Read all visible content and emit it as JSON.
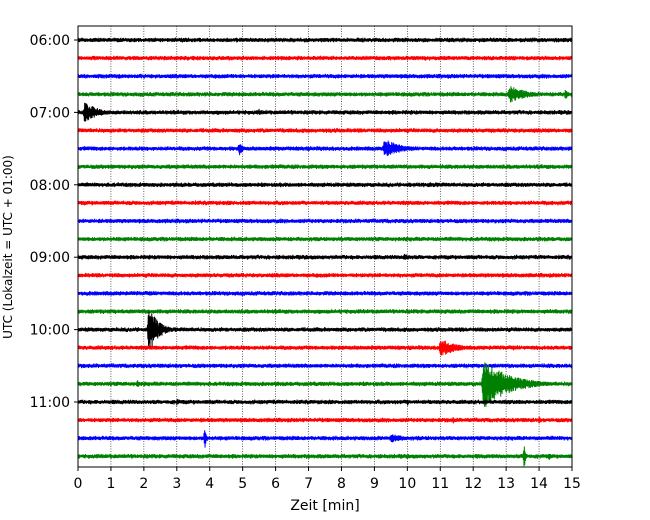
{
  "chart_data": {
    "type": "line",
    "title": "",
    "xlabel": "Zeit  [min]",
    "ylabel": "UTC (Lokalzeit = UTC + 01:00)",
    "xlim": [
      0,
      15
    ],
    "x_ticks": [
      0,
      1,
      2,
      3,
      4,
      5,
      6,
      7,
      8,
      9,
      10,
      11,
      12,
      13,
      14,
      15
    ],
    "y_ticks": [
      "06:00",
      "07:00",
      "08:00",
      "09:00",
      "10:00",
      "11:00"
    ],
    "vertical_grid": true,
    "colors": [
      "#000000",
      "#ff0000",
      "#0000ff",
      "#008000"
    ],
    "traces": [
      {
        "start": "06:00",
        "color": "#000000",
        "events": []
      },
      {
        "start": "06:15",
        "color": "#ff0000",
        "events": []
      },
      {
        "start": "06:30",
        "color": "#0000ff",
        "events": []
      },
      {
        "start": "06:45",
        "color": "#008000",
        "events": [
          {
            "t": 13.1,
            "amp": 9,
            "dur": 1.6
          },
          {
            "t": 14.8,
            "amp": 6,
            "dur": 0.3
          }
        ]
      },
      {
        "start": "07:00",
        "color": "#000000",
        "events": [
          {
            "t": 0.2,
            "amp": 11,
            "dur": 1.2
          },
          {
            "t": 5.5,
            "amp": 4,
            "dur": 0.3
          }
        ]
      },
      {
        "start": "07:15",
        "color": "#ff0000",
        "events": []
      },
      {
        "start": "07:30",
        "color": "#0000ff",
        "events": [
          {
            "t": 4.9,
            "amp": 8,
            "dur": 0.3
          },
          {
            "t": 9.3,
            "amp": 10,
            "dur": 1.5
          }
        ]
      },
      {
        "start": "07:45",
        "color": "#008000",
        "events": []
      },
      {
        "start": "08:00",
        "color": "#000000",
        "events": []
      },
      {
        "start": "08:15",
        "color": "#ff0000",
        "events": []
      },
      {
        "start": "08:30",
        "color": "#0000ff",
        "events": []
      },
      {
        "start": "08:45",
        "color": "#008000",
        "events": []
      },
      {
        "start": "09:00",
        "color": "#000000",
        "events": [
          {
            "t": 9.9,
            "amp": 4,
            "dur": 0.8
          }
        ]
      },
      {
        "start": "09:15",
        "color": "#ff0000",
        "events": []
      },
      {
        "start": "09:30",
        "color": "#0000ff",
        "events": []
      },
      {
        "start": "09:45",
        "color": "#008000",
        "events": []
      },
      {
        "start": "10:00",
        "color": "#000000",
        "events": [
          {
            "t": 2.15,
            "amp": 25,
            "dur": 0.8
          }
        ]
      },
      {
        "start": "10:15",
        "color": "#ff0000",
        "events": [
          {
            "t": 11.0,
            "amp": 10,
            "dur": 1.4
          }
        ]
      },
      {
        "start": "10:30",
        "color": "#0000ff",
        "events": []
      },
      {
        "start": "10:45",
        "color": "#008000",
        "events": [
          {
            "t": 1.8,
            "amp": 4,
            "dur": 0.5
          },
          {
            "t": 12.3,
            "amp": 26,
            "dur": 2.2
          }
        ]
      },
      {
        "start": "11:00",
        "color": "#000000",
        "events": [
          {
            "t": 3.0,
            "amp": 4,
            "dur": 0.4
          },
          {
            "t": 10.0,
            "amp": 4,
            "dur": 0.2
          }
        ]
      },
      {
        "start": "11:15",
        "color": "#ff0000",
        "events": [
          {
            "t": 11.4,
            "amp": 4,
            "dur": 0.2
          },
          {
            "t": 14.0,
            "amp": 4,
            "dur": 0.2
          }
        ]
      },
      {
        "start": "11:30",
        "color": "#0000ff",
        "events": [
          {
            "t": 3.85,
            "amp": 12,
            "dur": 0.15
          },
          {
            "t": 9.5,
            "amp": 5,
            "dur": 1.4
          }
        ]
      },
      {
        "start": "11:45",
        "color": "#008000",
        "events": [
          {
            "t": 13.55,
            "amp": 14,
            "dur": 0.15
          },
          {
            "t": 14.3,
            "amp": 4,
            "dur": 0.3
          }
        ]
      }
    ]
  }
}
